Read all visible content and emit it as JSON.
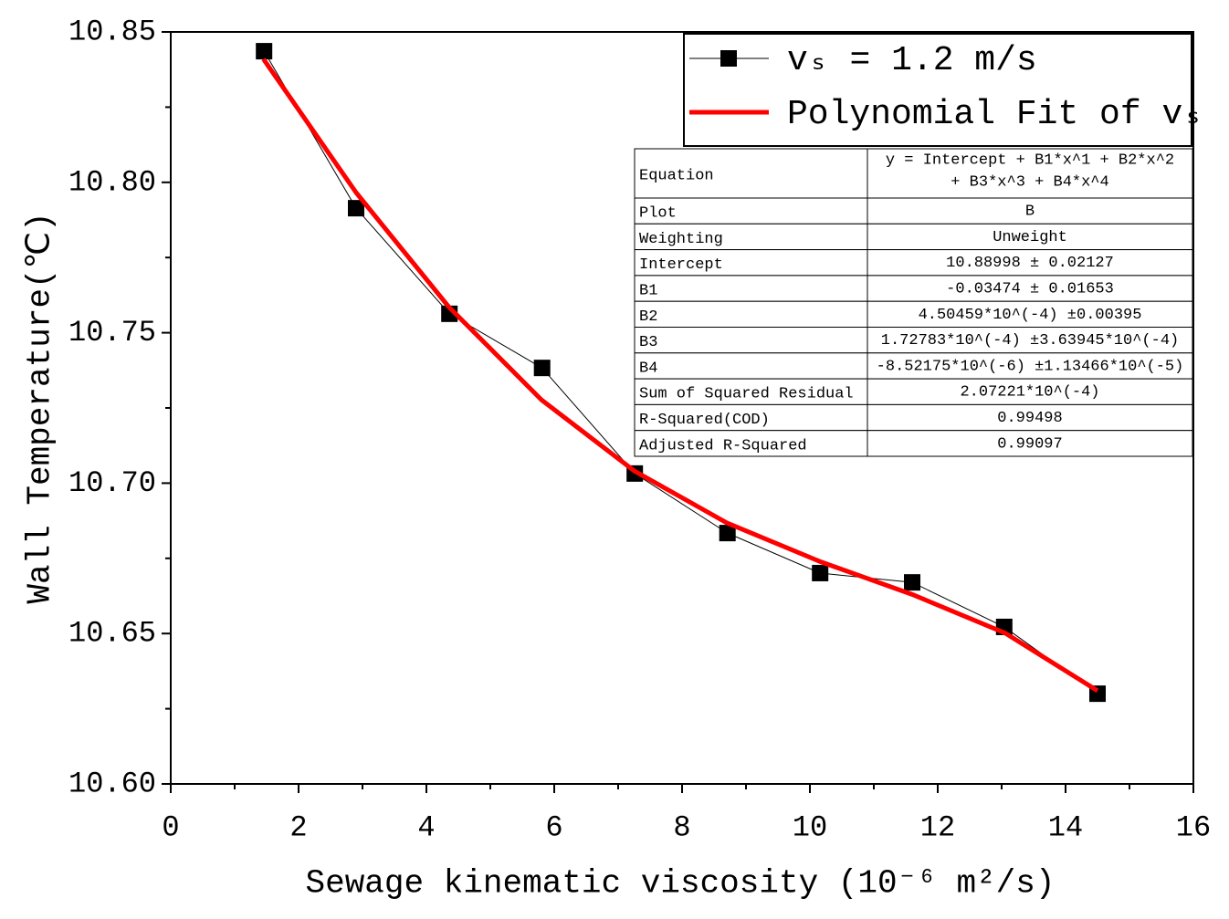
{
  "chart_data": {
    "type": "line",
    "x_label": "Sewage kinematic viscosity (10⁻⁶ m²/s)",
    "y_label": "Wall Temperature(℃)",
    "xlim": [
      0,
      16
    ],
    "xticks": [
      0,
      2,
      4,
      6,
      8,
      10,
      12,
      14,
      16
    ],
    "ylim": [
      10.6,
      10.85
    ],
    "yticks": [
      {
        "value": 10.6,
        "label": "10.60"
      },
      {
        "value": 10.65,
        "label": "10.65"
      },
      {
        "value": 10.7,
        "label": "10.70"
      },
      {
        "value": 10.75,
        "label": "10.75"
      },
      {
        "value": 10.8,
        "label": "10.80"
      },
      {
        "value": 10.85,
        "label": "10.85"
      }
    ],
    "legend_position": "upper right",
    "series": [
      {
        "name": "vₛ = 1.2 m/s",
        "color": "#000000",
        "marker": "square",
        "x": [
          1.46,
          2.9,
          4.36,
          5.81,
          7.26,
          8.71,
          10.16,
          11.6,
          13.04,
          14.5
        ],
        "values": [
          10.8436,
          10.7914,
          10.7563,
          10.7383,
          10.7032,
          10.6834,
          10.6701,
          10.667,
          10.6522,
          10.63
        ]
      },
      {
        "name": "Polynomial Fit of vₛ",
        "color": "#ff0000",
        "marker": "none",
        "x": [
          1.45,
          2.9,
          4.35,
          5.8,
          7.25,
          8.7,
          10.15,
          11.6,
          13.05,
          14.5
        ],
        "values": [
          10.841,
          10.7966,
          10.7586,
          10.7277,
          10.7041,
          10.6868,
          10.674,
          10.663,
          10.6502,
          10.631
        ]
      }
    ],
    "fit_table": {
      "rows": [
        [
          "Equation",
          "y = Intercept + B1*x^1 + B2*x^2",
          "+ B3*x^3 + B4*x^4"
        ],
        [
          "Plot",
          "B"
        ],
        [
          "Weighting",
          "Unweight"
        ],
        [
          "Intercept",
          "10.88998 ± 0.02127"
        ],
        [
          "B1",
          "-0.03474 ± 0.01653"
        ],
        [
          "B2",
          "4.50459*10^(-4) ±0.00395"
        ],
        [
          "B3",
          "1.72783*10^(-4) ±3.63945*10^(-4)"
        ],
        [
          "B4",
          "-8.52175*10^(-6) ±1.13466*10^(-5)"
        ],
        [
          "Sum of Squared Residual",
          "2.07221*10^(-4)"
        ],
        [
          "R-Squared(COD)",
          "0.99498"
        ],
        [
          "Adjusted R-Squared",
          "0.99097"
        ]
      ]
    }
  }
}
